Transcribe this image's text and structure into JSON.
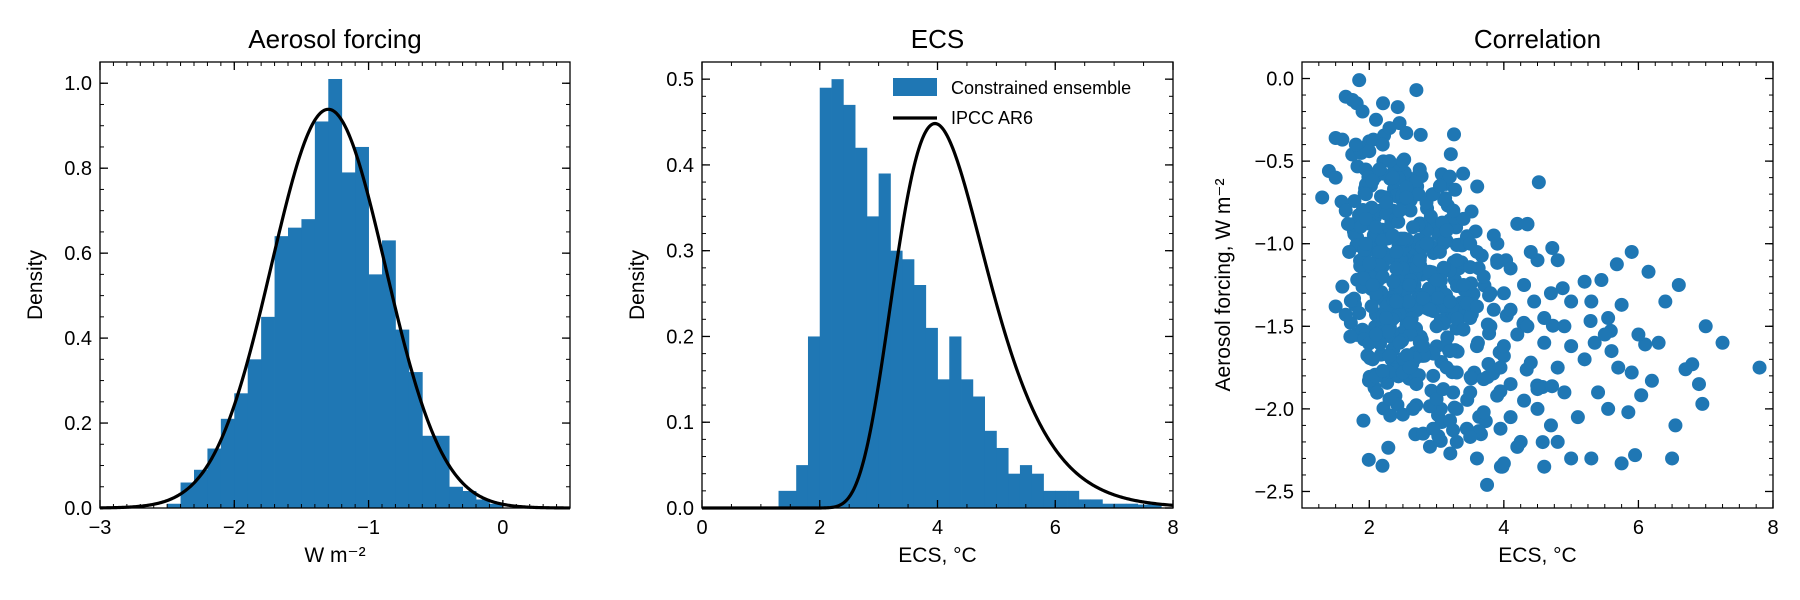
{
  "colors": {
    "hist": "#1f77b4",
    "curve": "#000000",
    "scatter": "#1f77b4"
  },
  "chart_data": [
    {
      "type": "bar",
      "title": "Aerosol forcing",
      "xlabel": "W m⁻²",
      "ylabel": "Density",
      "xlim": [
        -3,
        0.5
      ],
      "ylim": [
        0,
        1.05
      ],
      "xticks": [
        -3,
        -2,
        -1,
        0
      ],
      "xticklabels": [
        "−3",
        "−2",
        "−1",
        "0"
      ],
      "yticks": [
        0,
        0.2,
        0.4,
        0.6,
        0.8,
        1.0
      ],
      "yticklabels": [
        "0.0",
        "0.2",
        "0.4",
        "0.6",
        "0.8",
        "1.0"
      ],
      "bin_edges": [
        -2.5,
        -2.4,
        -2.3,
        -2.2,
        -2.1,
        -2.0,
        -1.9,
        -1.8,
        -1.7,
        -1.6,
        -1.5,
        -1.4,
        -1.3,
        -1.2,
        -1.1,
        -1.0,
        -0.9,
        -0.8,
        -0.7,
        -0.6,
        -0.5,
        -0.4,
        -0.3,
        -0.2,
        -0.1,
        0.0
      ],
      "values": [
        0.01,
        0.06,
        0.09,
        0.14,
        0.21,
        0.27,
        0.35,
        0.45,
        0.64,
        0.66,
        0.68,
        0.91,
        1.01,
        0.79,
        0.85,
        0.55,
        0.63,
        0.42,
        0.32,
        0.17,
        0.17,
        0.05,
        0.04,
        0.02,
        0.01
      ],
      "curve": {
        "name": "IPCC AR6",
        "distribution": "normal",
        "mean": -1.3,
        "sd": 0.425
      }
    },
    {
      "type": "bar",
      "title": "ECS",
      "xlabel": "ECS, °C",
      "ylabel": "Density",
      "xlim": [
        0,
        8
      ],
      "ylim": [
        0,
        0.52
      ],
      "xticks": [
        0,
        2,
        4,
        6,
        8
      ],
      "xticklabels": [
        "0",
        "2",
        "4",
        "6",
        "8"
      ],
      "yticks": [
        0,
        0.1,
        0.2,
        0.3,
        0.4,
        0.5
      ],
      "yticklabels": [
        "0.0",
        "0.1",
        "0.2",
        "0.3",
        "0.4",
        "0.5"
      ],
      "bin_edges": [
        1.3,
        1.6,
        1.8,
        2.0,
        2.2,
        2.4,
        2.6,
        2.8,
        3.0,
        3.2,
        3.4,
        3.6,
        3.8,
        4.0,
        4.2,
        4.4,
        4.6,
        4.8,
        5.0,
        5.2,
        5.4,
        5.6,
        5.8,
        6.0,
        6.2,
        6.4,
        6.6,
        6.8,
        7.0,
        7.2,
        7.4,
        7.6,
        7.8
      ],
      "values": [
        0.02,
        0.05,
        0.2,
        0.49,
        0.5,
        0.47,
        0.42,
        0.34,
        0.39,
        0.3,
        0.29,
        0.26,
        0.21,
        0.15,
        0.2,
        0.15,
        0.13,
        0.09,
        0.07,
        0.04,
        0.05,
        0.04,
        0.02,
        0.02,
        0.02,
        0.01,
        0.01,
        0.005,
        0.005,
        0.005,
        0.004,
        0.004
      ],
      "curve": {
        "name": "IPCC AR6",
        "distribution": "lognormal",
        "mu": 1.08,
        "sigma": 0.29,
        "shift": 1.25
      },
      "legend": {
        "placement": "top-right",
        "entries": [
          "Constrained ensemble",
          "IPCC AR6"
        ]
      }
    },
    {
      "type": "scatter",
      "title": "Correlation",
      "xlabel": "ECS, °C",
      "ylabel": "Aerosol forcing, W m⁻²",
      "xlim": [
        1.0,
        8.0
      ],
      "ylim": [
        -2.6,
        0.1
      ],
      "xticks": [
        2,
        4,
        6,
        8
      ],
      "xticklabels": [
        "2",
        "4",
        "6",
        "8"
      ],
      "yticks": [
        -2.5,
        -2.0,
        -1.5,
        -1.0,
        -0.5,
        0.0
      ],
      "yticklabels": [
        "−2.5",
        "−2.0",
        "−1.5",
        "−1.0",
        "−0.5",
        "0.0"
      ],
      "points": [
        [
          1.85,
          -0.01
        ],
        [
          2.7,
          -0.07
        ],
        [
          1.65,
          -0.11
        ],
        [
          1.75,
          -0.13
        ],
        [
          1.9,
          -0.2
        ],
        [
          2.1,
          -0.25
        ],
        [
          2.45,
          -0.27
        ],
        [
          1.6,
          -0.37
        ],
        [
          2.3,
          -0.3
        ],
        [
          2.55,
          -0.33
        ],
        [
          1.8,
          -0.4
        ],
        [
          2.0,
          -0.44
        ],
        [
          1.5,
          -0.36
        ],
        [
          1.4,
          -0.56
        ],
        [
          1.5,
          -0.6
        ],
        [
          1.3,
          -0.72
        ],
        [
          1.65,
          -0.8
        ],
        [
          1.7,
          -1.05
        ],
        [
          1.6,
          -1.26
        ],
        [
          1.5,
          -1.38
        ],
        [
          1.65,
          -1.43
        ],
        [
          1.85,
          -1.42
        ],
        [
          2.1,
          -1.55
        ],
        [
          2.05,
          -1.7
        ],
        [
          2.2,
          -1.77
        ],
        [
          2.3,
          -1.94
        ],
        [
          2.5,
          -1.78
        ],
        [
          2.8,
          -2.15
        ],
        [
          2.95,
          -2.12
        ],
        [
          3.0,
          -1.94
        ],
        [
          3.2,
          -2.07
        ],
        [
          3.3,
          -2.2
        ],
        [
          3.45,
          -2.12
        ],
        [
          3.5,
          -2.17
        ],
        [
          3.75,
          -2.46
        ],
        [
          4.0,
          -2.33
        ],
        [
          3.95,
          -2.12
        ],
        [
          4.2,
          -2.23
        ],
        [
          4.6,
          -2.35
        ],
        [
          4.8,
          -2.2
        ],
        [
          5.0,
          -2.3
        ],
        [
          5.3,
          -2.3
        ],
        [
          5.55,
          -2.0
        ],
        [
          5.75,
          -2.33
        ],
        [
          5.95,
          -2.28
        ],
        [
          6.5,
          -2.3
        ],
        [
          6.55,
          -2.1
        ],
        [
          5.85,
          -2.02
        ],
        [
          6.95,
          -1.97
        ],
        [
          6.8,
          -1.73
        ],
        [
          6.7,
          -1.76
        ],
        [
          7.25,
          -1.6
        ],
        [
          7.0,
          -1.5
        ],
        [
          7.8,
          -1.75
        ],
        [
          6.3,
          -1.6
        ],
        [
          6.1,
          -1.61
        ],
        [
          6.2,
          -1.83
        ],
        [
          6.6,
          -1.25
        ],
        [
          6.15,
          -1.17
        ],
        [
          5.3,
          -1.35
        ],
        [
          5.35,
          -1.6
        ],
        [
          5.75,
          -1.37
        ],
        [
          5.9,
          -1.78
        ],
        [
          6.0,
          -1.55
        ],
        [
          5.5,
          -1.55
        ],
        [
          5.6,
          -1.65
        ],
        [
          5.2,
          -1.23
        ],
        [
          5.45,
          -1.22
        ],
        [
          4.8,
          -1.1
        ],
        [
          4.5,
          -1.1
        ],
        [
          4.2,
          -0.88
        ],
        [
          4.35,
          -0.88
        ],
        [
          3.4,
          -0.85
        ],
        [
          3.15,
          -0.92
        ],
        [
          3.45,
          -0.97
        ],
        [
          2.85,
          -0.75
        ],
        [
          2.95,
          -0.7
        ],
        [
          2.7,
          -0.62
        ],
        [
          2.55,
          -0.66
        ],
        [
          2.3,
          -0.5
        ],
        [
          2.15,
          -0.55
        ],
        [
          2.05,
          -0.62
        ],
        [
          1.95,
          -0.7
        ],
        [
          2.45,
          -0.8
        ],
        [
          2.65,
          -0.9
        ],
        [
          2.2,
          -0.98
        ],
        [
          2.4,
          -1.05
        ],
        [
          2.85,
          -1.0
        ],
        [
          3.05,
          -1.05
        ],
        [
          3.3,
          -1.1
        ],
        [
          3.6,
          -1.05
        ],
        [
          3.9,
          -1.1
        ],
        [
          4.1,
          -1.15
        ],
        [
          3.7,
          -1.2
        ],
        [
          2.5,
          -1.15
        ],
        [
          2.0,
          -1.12
        ],
        [
          2.2,
          -1.2
        ],
        [
          2.6,
          -1.25
        ],
        [
          3.0,
          -1.22
        ],
        [
          3.4,
          -1.25
        ],
        [
          3.8,
          -1.3
        ],
        [
          4.3,
          -1.25
        ],
        [
          4.7,
          -1.3
        ],
        [
          5.0,
          -1.35
        ],
        [
          4.6,
          -1.45
        ],
        [
          4.1,
          -1.4
        ],
        [
          3.6,
          -1.38
        ],
        [
          3.2,
          -1.35
        ],
        [
          2.8,
          -1.33
        ],
        [
          2.4,
          -1.35
        ],
        [
          2.1,
          -1.3
        ],
        [
          2.25,
          -1.45
        ],
        [
          2.6,
          -1.48
        ],
        [
          3.0,
          -1.5
        ],
        [
          3.4,
          -1.52
        ],
        [
          3.8,
          -1.5
        ],
        [
          4.2,
          -1.55
        ],
        [
          4.6,
          -1.6
        ],
        [
          5.0,
          -1.62
        ],
        [
          5.2,
          -1.7
        ],
        [
          4.8,
          -1.75
        ],
        [
          4.4,
          -1.72
        ],
        [
          4.0,
          -1.68
        ],
        [
          3.6,
          -1.62
        ],
        [
          3.2,
          -1.65
        ],
        [
          2.8,
          -1.62
        ],
        [
          2.45,
          -1.6
        ],
        [
          2.3,
          -1.68
        ],
        [
          2.6,
          -1.75
        ],
        [
          2.95,
          -1.8
        ],
        [
          3.3,
          -1.78
        ],
        [
          3.7,
          -1.82
        ],
        [
          4.1,
          -1.85
        ],
        [
          4.5,
          -1.88
        ],
        [
          4.9,
          -1.9
        ],
        [
          4.3,
          -1.95
        ],
        [
          3.9,
          -1.92
        ],
        [
          3.5,
          -1.9
        ],
        [
          3.1,
          -1.88
        ],
        [
          2.7,
          -1.85
        ],
        [
          3.3,
          -2.0
        ],
        [
          3.7,
          -2.02
        ],
        [
          4.1,
          -2.05
        ],
        [
          4.5,
          -2.0
        ],
        [
          2.2,
          -0.4
        ],
        [
          2.5,
          -0.5
        ],
        [
          2.75,
          -0.55
        ],
        [
          3.05,
          -0.65
        ],
        [
          2.35,
          -0.6
        ],
        [
          1.95,
          -0.85
        ],
        [
          2.1,
          -0.9
        ],
        [
          2.35,
          -0.95
        ],
        [
          1.95,
          -1.0
        ],
        [
          3.5,
          -1.0
        ],
        [
          3.85,
          -0.95
        ],
        [
          4.4,
          -1.05
        ],
        [
          4.0,
          -1.3
        ],
        [
          4.45,
          -1.35
        ],
        [
          5.55,
          -1.45
        ],
        [
          5.7,
          -1.75
        ],
        [
          5.4,
          -1.9
        ],
        [
          4.7,
          -2.1
        ],
        [
          3.95,
          -1.75
        ],
        [
          3.5,
          -1.45
        ],
        [
          2.75,
          -1.1
        ],
        [
          3.25,
          -0.8
        ],
        [
          2.9,
          -1.4
        ],
        [
          2.55,
          -0.72
        ],
        [
          2.25,
          -0.75
        ],
        [
          2.05,
          -1.25
        ],
        [
          4.9,
          -1.5
        ],
        [
          5.9,
          -1.05
        ],
        [
          6.4,
          -1.35
        ],
        [
          6.9,
          -1.85
        ],
        [
          4.25,
          -2.2
        ],
        [
          5.1,
          -2.05
        ],
        [
          3.6,
          -2.3
        ],
        [
          4.0,
          -1.62
        ],
        [
          2.65,
          -2.0
        ],
        [
          3.15,
          -1.75
        ],
        [
          3.85,
          -1.4
        ],
        [
          4.35,
          -1.5
        ],
        [
          2.4,
          -1.15
        ],
        [
          2.15,
          -1.05
        ]
      ],
      "point_spread": {
        "center": [
          3.1,
          -1.3
        ],
        "spread": [
          0.95,
          0.42
        ],
        "count": 420,
        "slope": -0.17
      }
    }
  ]
}
